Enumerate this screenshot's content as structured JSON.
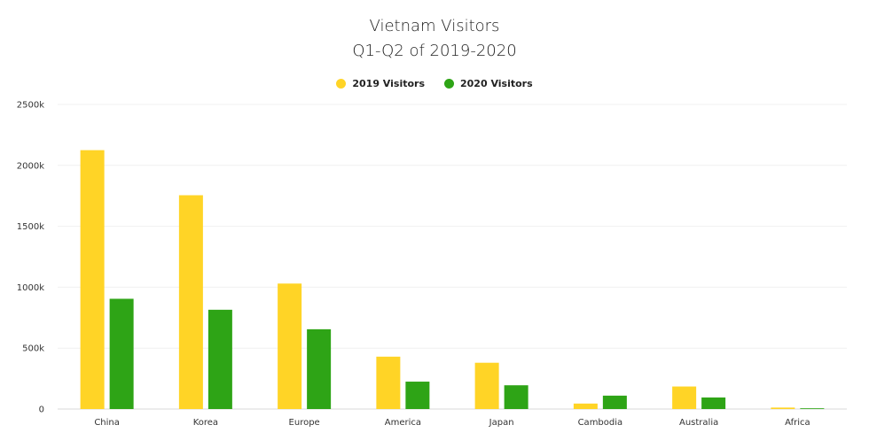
{
  "chart_data": {
    "type": "bar",
    "title": "Vietnam Visitors",
    "subtitle": "Q1-Q2 of 2019-2020",
    "categories": [
      "China",
      "Korea",
      "Europe",
      "America",
      "Japan",
      "Cambodia",
      "Australia",
      "Africa"
    ],
    "series": [
      {
        "name": "2019 Visitors",
        "color": "#ffd426",
        "values": [
          2125,
          1755,
          1030,
          430,
          380,
          45,
          185,
          12
        ]
      },
      {
        "name": "2020 Visitors",
        "color": "#2ea416",
        "values": [
          905,
          815,
          655,
          225,
          195,
          110,
          95,
          6
        ]
      }
    ],
    "yticks": [
      "0",
      "500k",
      "1000k",
      "1500k",
      "2000k",
      "2500k"
    ],
    "ylim": [
      0,
      2500
    ],
    "grid": true,
    "legend": "top-center"
  }
}
